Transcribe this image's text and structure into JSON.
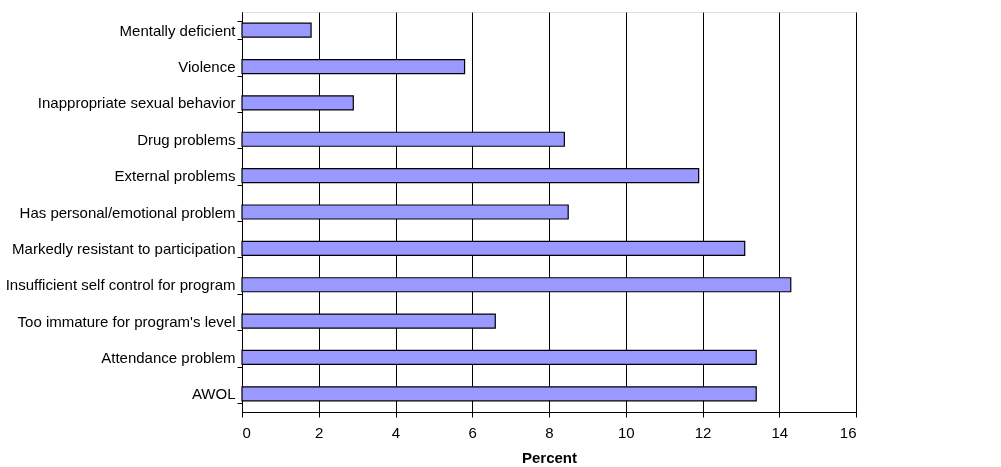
{
  "chart_data": {
    "type": "bar",
    "orientation": "horizontal",
    "xlabel": "Percent",
    "categories": [
      "Mentally deficient",
      "Violence",
      "Inappropriate sexual behavior",
      "Drug problems",
      "External problems",
      "Has personal/emotional problem",
      "Markedly resistant to participation",
      "Insufficient self control for program",
      "Too immature for program's level",
      "Attendance problem",
      "AWOL"
    ],
    "values": [
      1.8,
      5.8,
      2.9,
      8.4,
      11.9,
      8.5,
      13.1,
      14.3,
      6.6,
      13.4,
      13.4
    ],
    "color": "#9999ff",
    "xlim": [
      0,
      16
    ],
    "xticks": [
      0,
      2,
      4,
      6,
      8,
      10,
      12,
      14,
      16
    ],
    "grid": "x"
  }
}
